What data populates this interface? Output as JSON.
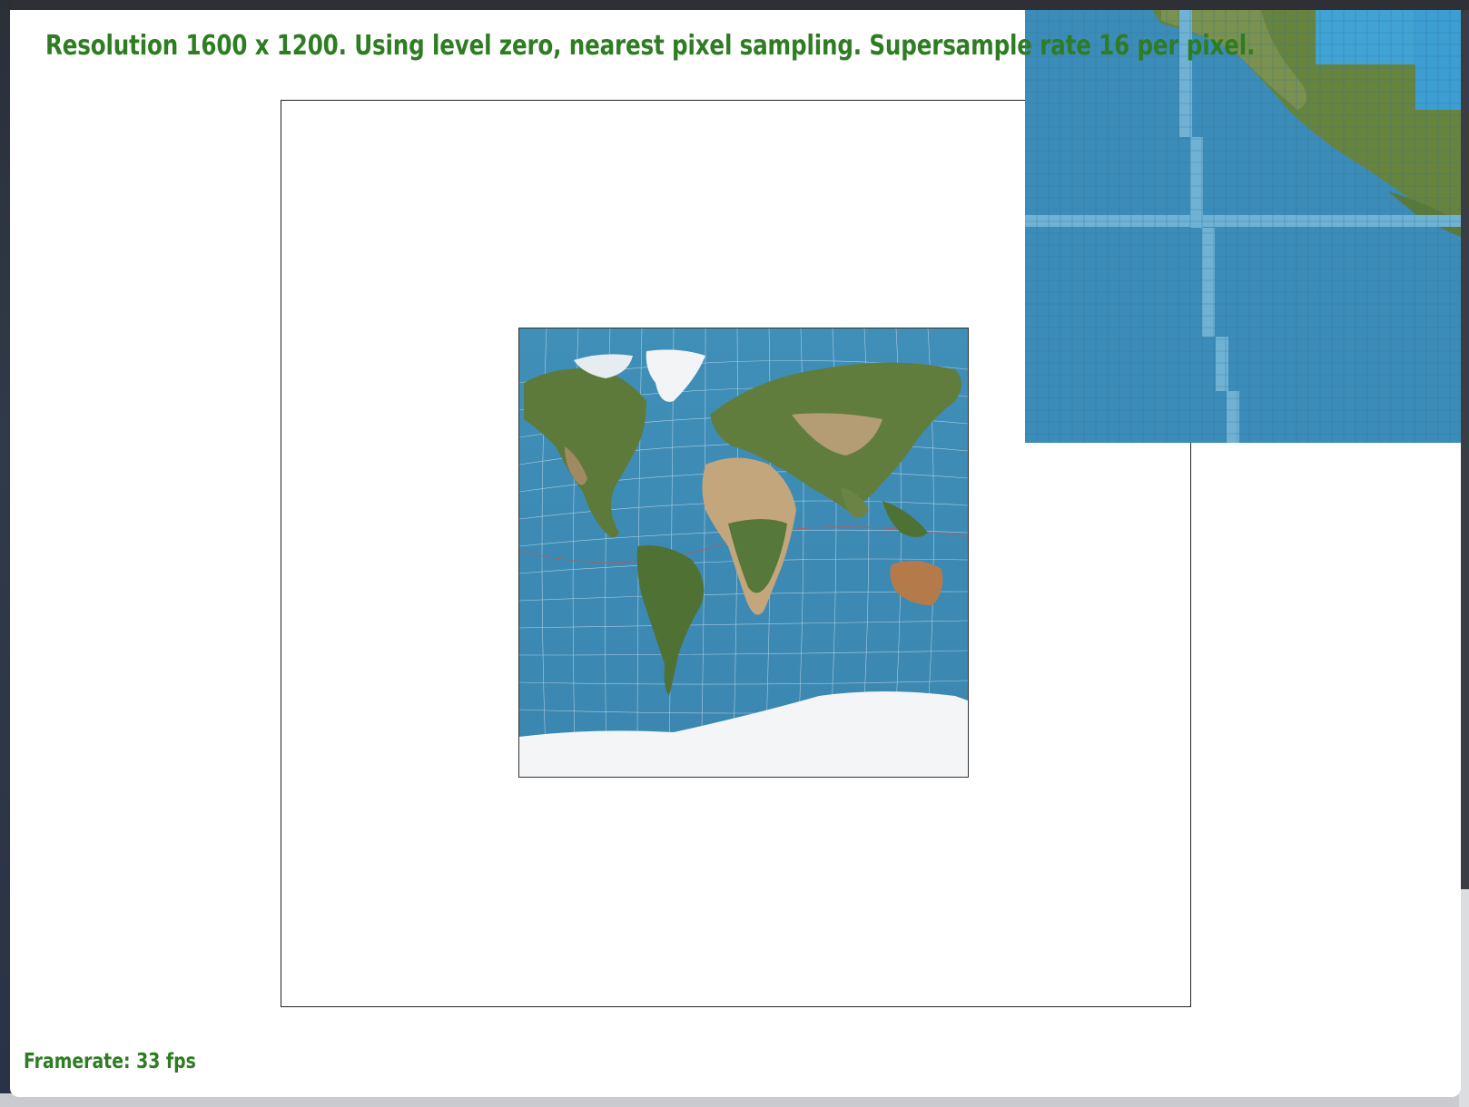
{
  "status": {
    "info_line": "Resolution 1600 x 1200. Using level zero, nearest pixel sampling. Supersample rate 16 per pixel.",
    "framerate": "Framerate: 33 fps"
  },
  "colors": {
    "text_green": "#2e7d22",
    "ocean": "#3d8ab3",
    "land_green": "#5f7d3c",
    "desert": "#c7ab82",
    "ice": "#f2f4f5"
  },
  "viewport": {
    "content": "world-map",
    "zoom_inset": "pixel-inspector"
  }
}
